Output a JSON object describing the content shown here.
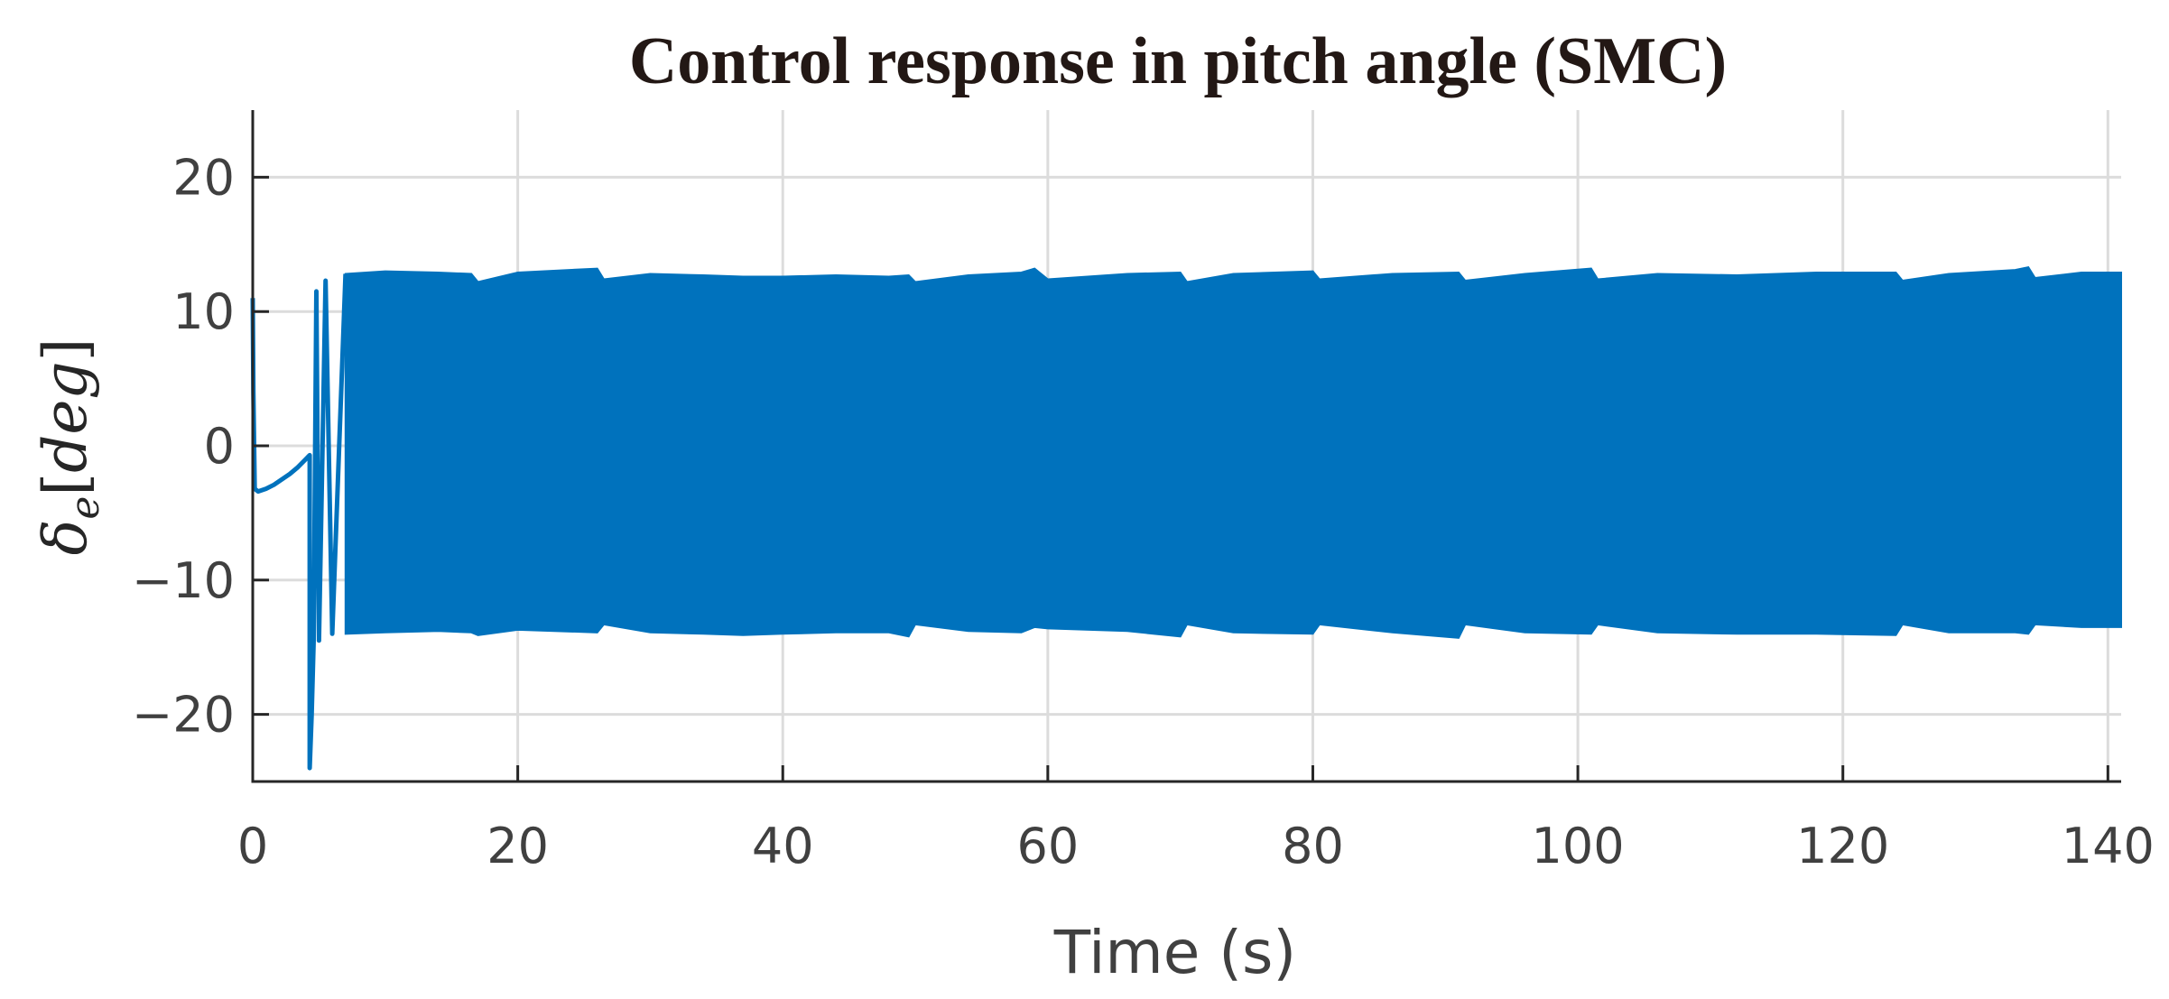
{
  "chart_data": {
    "type": "line",
    "title": "Control response in pitch angle (SMC)",
    "xlabel": "Time (s)",
    "ylabel": {
      "symbol": "δ",
      "subscript": "e",
      "unit_open": "[",
      "unit": "deg",
      "unit_close": "]"
    },
    "xlim": [
      0,
      141
    ],
    "ylim": [
      -25,
      25
    ],
    "xticks": [
      0,
      20,
      40,
      60,
      80,
      100,
      120,
      140
    ],
    "yticks": [
      -20,
      -10,
      0,
      10,
      20
    ],
    "xtick_labels": [
      "0",
      "20",
      "40",
      "60",
      "80",
      "100",
      "120",
      "140"
    ],
    "ytick_labels": [
      "−20",
      "−10",
      "0",
      "10",
      "20"
    ],
    "grid": true,
    "color": "#0072BD",
    "series": [
      {
        "transient": {
          "x": [
            0,
            0.05,
            0.15,
            0.4,
            1.0,
            1.6,
            2.2,
            2.8,
            3.4,
            4.0,
            4.3,
            4.3,
            4.45,
            4.6,
            4.8,
            5.0,
            5.5,
            6.0,
            7.0
          ],
          "y": [
            11,
            4,
            -3.2,
            -3.4,
            -3.2,
            -2.9,
            -2.5,
            -2.1,
            -1.6,
            -1.0,
            -0.7,
            -24,
            -20,
            -14.5,
            11.5,
            -14.5,
            12.3,
            -14.0,
            12.8
          ]
        },
        "envelope": {
          "x": [
            7,
            10,
            14,
            16.5,
            17,
            20,
            26,
            26.5,
            30,
            34,
            37,
            40,
            44,
            48,
            49.5,
            50,
            54,
            58,
            59,
            60,
            66,
            70,
            70.5,
            74,
            80,
            80.5,
            86,
            91,
            91.5,
            96,
            101,
            101.5,
            106,
            112,
            118,
            124,
            124.5,
            128,
            133,
            134,
            134.5,
            138,
            141
          ],
          "upper": [
            12.8,
            13.0,
            12.9,
            12.8,
            12.2,
            12.9,
            13.2,
            12.4,
            12.8,
            12.7,
            12.6,
            12.6,
            12.7,
            12.6,
            12.7,
            12.2,
            12.7,
            12.9,
            13.2,
            12.4,
            12.8,
            12.9,
            12.2,
            12.8,
            13.0,
            12.4,
            12.8,
            12.9,
            12.3,
            12.8,
            13.2,
            12.4,
            12.8,
            12.7,
            12.9,
            12.9,
            12.3,
            12.8,
            13.1,
            13.3,
            12.5,
            12.9,
            12.9
          ],
          "lower": [
            -14.0,
            -13.9,
            -13.8,
            -13.9,
            -14.1,
            -13.7,
            -13.9,
            -13.3,
            -13.9,
            -14.0,
            -14.1,
            -14.0,
            -13.9,
            -13.9,
            -14.2,
            -13.3,
            -13.8,
            -13.9,
            -13.5,
            -13.6,
            -13.8,
            -14.2,
            -13.3,
            -13.9,
            -14.0,
            -13.3,
            -13.9,
            -14.3,
            -13.3,
            -13.9,
            -14.0,
            -13.3,
            -13.9,
            -14.0,
            -14.0,
            -14.1,
            -13.3,
            -13.9,
            -13.9,
            -14.0,
            -13.3,
            -13.5,
            -13.5
          ]
        }
      }
    ]
  }
}
